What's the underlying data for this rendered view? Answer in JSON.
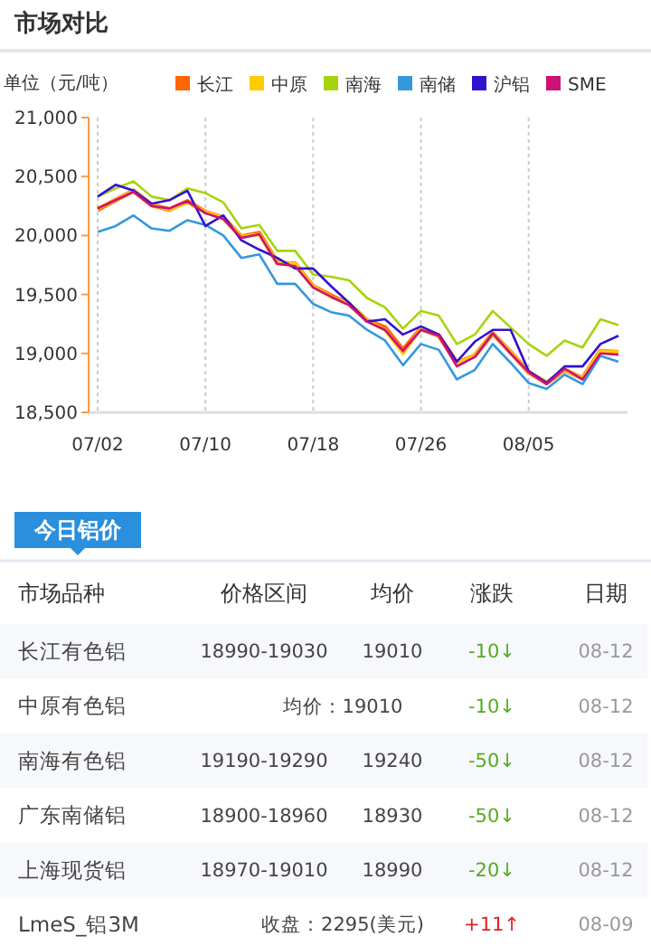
{
  "chart_data": [
    {
      "type": "line",
      "title": "市场对比",
      "ylabel": "单位（元/吨）",
      "categories": [
        "07/02",
        null,
        null,
        null,
        null,
        null,
        "07/10",
        null,
        null,
        null,
        null,
        null,
        "07/18",
        null,
        null,
        null,
        null,
        null,
        "07/26",
        null,
        null,
        null,
        null,
        null,
        "08/05",
        null,
        null,
        null,
        null,
        null
      ],
      "ylim": [
        18500,
        21000
      ],
      "yticks": [
        {
          "value": 18500,
          "label": "18,500"
        },
        {
          "value": 19000,
          "label": "19,000"
        },
        {
          "value": 19500,
          "label": "19,500"
        },
        {
          "value": 20000,
          "label": "20,000"
        },
        {
          "value": 20500,
          "label": "20,500"
        },
        {
          "value": 21000,
          "label": "21,000"
        }
      ],
      "grid": "x",
      "legend": "top",
      "marker": "none",
      "line_style": "solid",
      "series": [
        {
          "name": "长江",
          "color": "#ff6600",
          "values": [
            20220,
            20300,
            20380,
            20260,
            20220,
            20290,
            20200,
            20150,
            19990,
            20020,
            19770,
            19760,
            19570,
            19490,
            19420,
            19280,
            19220,
            19030,
            19210,
            19150,
            18920,
            18980,
            19170,
            19010,
            18840,
            18750,
            18860,
            18790,
            19020,
            19010
          ]
        },
        {
          "name": "中原",
          "color": "#ffcc00",
          "values": [
            20230,
            20300,
            20380,
            20260,
            20220,
            20280,
            20200,
            20150,
            19990,
            20010,
            19770,
            19760,
            19570,
            19480,
            19420,
            19280,
            19200,
            19000,
            19210,
            19150,
            18920,
            18980,
            19170,
            19010,
            18840,
            18750,
            18860,
            18790,
            19020,
            19010
          ]
        },
        {
          "name": "南海",
          "color": "#a6d40e",
          "values": [
            20330,
            20400,
            20460,
            20330,
            20300,
            20400,
            20360,
            20280,
            20060,
            20090,
            19870,
            19870,
            19670,
            19650,
            19620,
            19470,
            19390,
            19210,
            19360,
            19320,
            19080,
            19160,
            19360,
            19220,
            19080,
            18980,
            19110,
            19050,
            19290,
            19240
          ]
        },
        {
          "name": "南储",
          "color": "#3399dd",
          "values": [
            20030,
            20080,
            20170,
            20060,
            20040,
            20130,
            20090,
            20000,
            19810,
            19840,
            19590,
            19590,
            19420,
            19350,
            19320,
            19200,
            19110,
            18900,
            19080,
            19030,
            18780,
            18860,
            19080,
            18920,
            18750,
            18700,
            18820,
            18740,
            18980,
            18930
          ]
        },
        {
          "name": "沪铝",
          "color": "#3311cc",
          "values": [
            20330,
            20430,
            20380,
            20270,
            20300,
            20380,
            20080,
            20170,
            19960,
            19880,
            19810,
            19720,
            19720,
            19570,
            19430,
            19270,
            19290,
            19160,
            19230,
            19160,
            18930,
            19100,
            19200,
            19200,
            18850,
            18750,
            18890,
            18890,
            19080,
            19150
          ]
        },
        {
          "name": "SME",
          "color": "#cc1177",
          "values": [
            20230,
            20300,
            20370,
            20250,
            20230,
            20290,
            20190,
            20140,
            19980,
            20010,
            19760,
            19740,
            19560,
            19480,
            19410,
            19270,
            19200,
            19020,
            19200,
            19150,
            18890,
            18970,
            19170,
            19000,
            18840,
            18740,
            18870,
            18780,
            19000,
            18990
          ]
        }
      ]
    },
    {
      "type": "other",
      "title": "今日铝价",
      "categories": [
        "市场品种",
        "价格区间",
        "均价",
        "涨跌",
        "日期"
      ],
      "cell_labels": [
        [
          "长江有色铝",
          "18990-19030",
          "19010",
          "-10↓",
          "08-12"
        ],
        [
          "中原有色铝",
          "均价：19010",
          null,
          "-10↓",
          "08-12"
        ],
        [
          "南海有色铝",
          "19190-19290",
          "19240",
          "-50↓",
          "08-12"
        ],
        [
          "广东南储铝",
          "18900-18960",
          "18930",
          "-50↓",
          "08-12"
        ],
        [
          "上海现货铝",
          "18970-19010",
          "18990",
          "-20↓",
          "08-12"
        ],
        [
          "LmeS_铝3M",
          "收盘：2295(美元)",
          null,
          "+11↑",
          "08-09"
        ]
      ],
      "colors": [
        "#55aa22",
        "#55aa22",
        "#55aa22",
        "#55aa22",
        "#55aa22",
        "#dd2222"
      ]
    }
  ]
}
